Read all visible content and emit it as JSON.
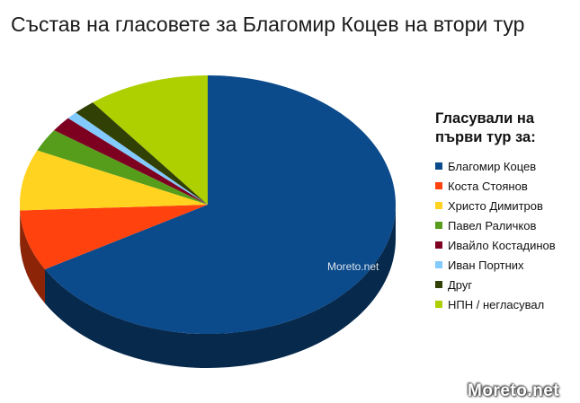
{
  "chart_data": {
    "type": "pie",
    "title": "Състав на гласовете за Благомир Коцев на втори тур",
    "legend_title": "Гласували на първи тур за:",
    "legend_placement": "right",
    "series": [
      {
        "name": "Благомир Коцев",
        "value": 70.0,
        "color": "#0b4a8b"
      },
      {
        "name": "Коста Стоянов",
        "value": 8.0,
        "color": "#ff420e"
      },
      {
        "name": "Христо Димитров",
        "value": 8.0,
        "color": "#ffd320"
      },
      {
        "name": "Павел Раличков",
        "value": 3.0,
        "color": "#579d1c"
      },
      {
        "name": "Ивайло Костадинов",
        "value": 2.0,
        "color": "#7e0021"
      },
      {
        "name": "Иван Портних",
        "value": 1.0,
        "color": "#83caff"
      },
      {
        "name": "Друг",
        "value": 2.0,
        "color": "#314004"
      },
      {
        "name": "НПН / негласувал",
        "value": 11.0,
        "color": "#aecf00"
      }
    ]
  },
  "watermarks": {
    "small": "Moreto.net",
    "big": "Moreto.net"
  }
}
